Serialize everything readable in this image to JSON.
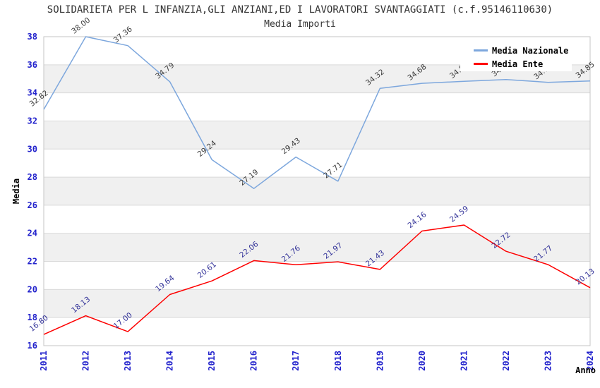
{
  "title": "SOLIDARIETA PER L INFANZIA,GLI ANZIANI,ED I LAVORATORI SVANTAGGIATI (c.f.95146110630)",
  "subtitle": "Media Importi",
  "legend": {
    "position": "top-right",
    "items": [
      {
        "label": "Media Nazionale",
        "color": "#7da7dd"
      },
      {
        "label": "Media Ente",
        "color": "#fe0000"
      }
    ]
  },
  "chart_data": {
    "type": "line",
    "x": [
      "2011",
      "2012",
      "2013",
      "2014",
      "2015",
      "2016",
      "2017",
      "2018",
      "2019",
      "2020",
      "2021",
      "2022",
      "2023",
      "2024"
    ],
    "series": [
      {
        "name": "Media Nazionale",
        "color": "#7da7dd",
        "label_color": "#3d3d3d",
        "values": [
          32.82,
          38.0,
          37.36,
          34.79,
          29.24,
          27.19,
          29.43,
          27.71,
          34.32,
          34.68,
          34.82,
          34.95,
          34.75,
          34.85
        ],
        "labels_hidden_by_legend": [
          "2022",
          "2023"
        ]
      },
      {
        "name": "Media Ente",
        "color": "#fe0000",
        "label_color": "#333399",
        "values": [
          16.8,
          18.13,
          17.0,
          19.64,
          20.61,
          22.06,
          21.76,
          21.97,
          21.43,
          24.16,
          24.59,
          22.72,
          21.77,
          20.13
        ]
      }
    ],
    "xlabel": "Anno",
    "ylabel": "Media",
    "ylim": [
      16,
      38
    ],
    "ytick_step": 2,
    "grid": true,
    "band_fill": "alternating horizontal gray bands",
    "legend_position": "top-right inside plot"
  },
  "colors": {
    "page_bg": "#ffffff",
    "band": "#f0f0f0",
    "grid": "#d9d9d9",
    "border": "#c6c6c6",
    "tick_label": "#2222cc",
    "title": "#333333",
    "axis_title": "#000000",
    "legend_bg": "#ffffff",
    "legend_text": "#000000"
  }
}
